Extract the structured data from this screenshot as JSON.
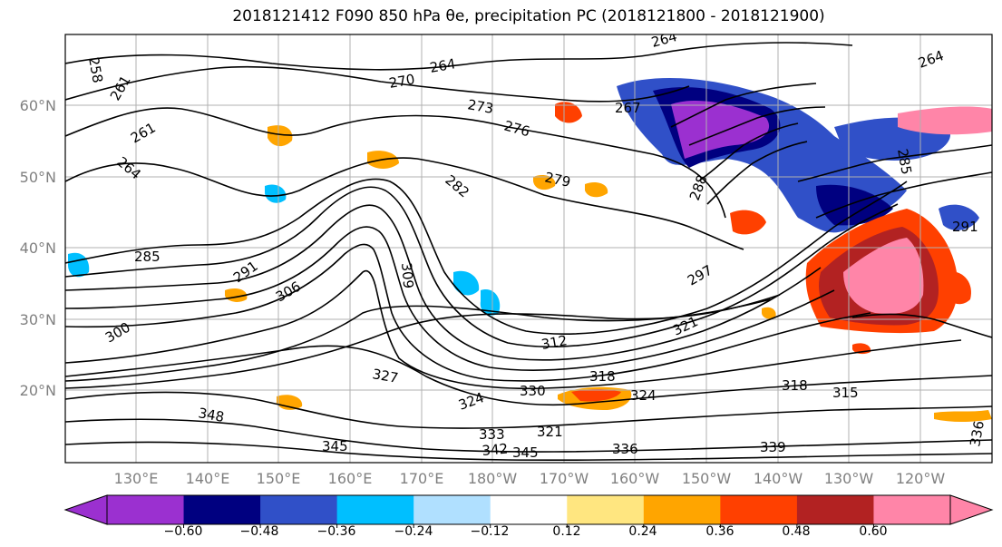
{
  "title": "2018121412 F090 850 hPa θe, precipitation PC (2018121800 - 2018121900)",
  "map": {
    "lat_labels": [
      "60°N",
      "50°N",
      "40°N",
      "30°N",
      "20°N"
    ],
    "lon_labels": [
      "130°E",
      "140°E",
      "150°E",
      "160°E",
      "170°E",
      "180°W",
      "170°W",
      "160°W",
      "150°W",
      "140°W",
      "130°W",
      "120°W"
    ],
    "theta_e_contour_labels": [
      "258",
      "261",
      "261",
      "264",
      "264",
      "264",
      "264",
      "267",
      "270",
      "273",
      "276",
      "279",
      "282",
      "285",
      "285",
      "288",
      "291",
      "291",
      "297",
      "300",
      "306",
      "309",
      "312",
      "315",
      "318",
      "318",
      "321",
      "324",
      "324",
      "327",
      "330",
      "333",
      "336",
      "336",
      "339",
      "342",
      "345",
      "345",
      "348",
      "321"
    ]
  },
  "colorbar": {
    "tick_labels": [
      "−0.60",
      "−0.48",
      "−0.36",
      "−0.24",
      "−0.12",
      "0.12",
      "0.24",
      "0.36",
      "0.48",
      "0.60"
    ],
    "levels": [
      -0.72,
      -0.6,
      -0.48,
      -0.36,
      -0.24,
      -0.12,
      0.12,
      0.24,
      0.36,
      0.48,
      0.6,
      0.72
    ],
    "colors": [
      "#9b30d0",
      "#000080",
      "#3050c8",
      "#00bfff",
      "#b0e0ff",
      "#ffffff",
      "#ffe680",
      "#ffa500",
      "#ff4000",
      "#b22222",
      "#ff85a8"
    ]
  }
}
